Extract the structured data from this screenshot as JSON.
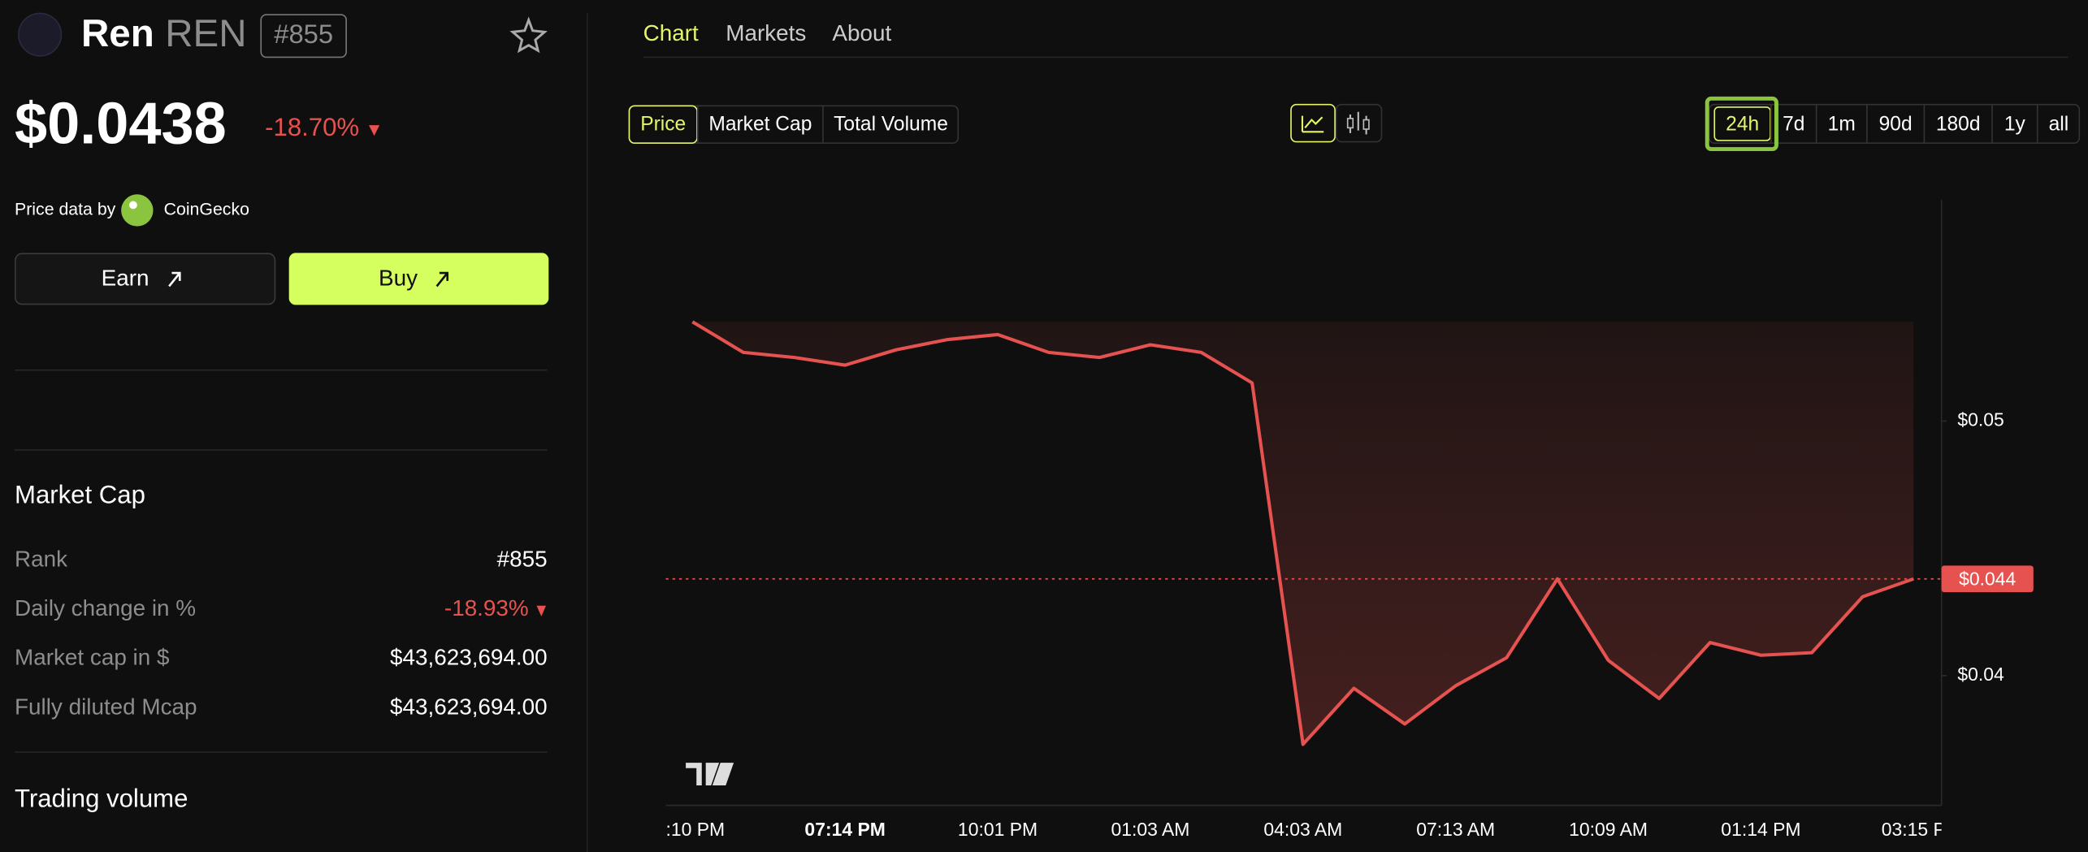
{
  "header": {
    "name": "Ren",
    "ticker": "REN",
    "rank": "#855"
  },
  "price": {
    "value": "$0.0438",
    "change": "-18.70%"
  },
  "source": {
    "label": "Price data by",
    "provider": "CoinGecko"
  },
  "buttons": {
    "earn": "Earn",
    "buy": "Buy"
  },
  "market_cap": {
    "title": "Market Cap",
    "rows": [
      [
        "Rank",
        "#855"
      ],
      [
        "Daily change in %",
        "-18.93%"
      ],
      [
        "Market cap in $",
        "$43,623,694.00"
      ],
      [
        "Fully diluted Mcap",
        "$43,623,694.00"
      ]
    ]
  },
  "trading_volume": {
    "title": "Trading volume"
  },
  "tabs": [
    "Chart",
    "Markets",
    "About"
  ],
  "metric_toggle": [
    "Price",
    "Market Cap",
    "Total Volume"
  ],
  "ranges": [
    "24h",
    "7d",
    "1m",
    "90d",
    "180d",
    "1y",
    "all"
  ],
  "chart_data": {
    "type": "line",
    "x": [
      ":10 PM",
      null,
      null,
      "07:14 PM",
      null,
      null,
      "10:01 PM",
      null,
      null,
      "01:03 AM",
      null,
      null,
      "04:03 AM",
      null,
      null,
      "07:13 AM",
      null,
      null,
      "10:09 AM",
      null,
      null,
      "01:14 PM",
      null,
      null,
      "03:15 P"
    ],
    "values": [
      0.0539,
      0.0527,
      0.0525,
      0.0522,
      0.0528,
      0.0532,
      0.0534,
      0.0527,
      0.0525,
      0.053,
      0.0527,
      0.0515,
      0.0373,
      0.0395,
      0.0381,
      0.0396,
      0.0407,
      0.0438,
      0.0406,
      0.0391,
      0.0413,
      0.0408,
      0.0409,
      0.0431,
      0.0438
    ],
    "color": "#e5524f",
    "ylim": [
      0.0349,
      0.0587
    ],
    "yticks": [
      {
        "value": 0.05,
        "label": "$0.05"
      },
      {
        "value": 0.04,
        "label": "$0.04"
      }
    ],
    "price_line": {
      "value": 0.0438,
      "label": "$0.044"
    }
  }
}
